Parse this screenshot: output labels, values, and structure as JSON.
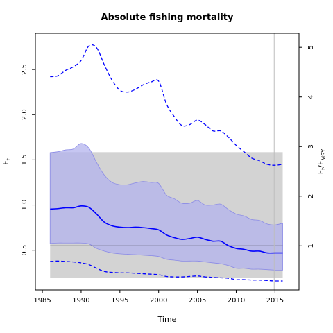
{
  "chart_data": {
    "type": "line",
    "title": "Absolute fishing mortality",
    "xlabel": "Time",
    "ylabel_main": "F",
    "ylabel_sub": "t",
    "y2label_main": "F",
    "y2label_sub1": "t",
    "y2label_sep": "/F",
    "y2label_sub2": "MSY",
    "xlim": [
      1984.1,
      2018.1
    ],
    "ylim": [
      0.06,
      2.9
    ],
    "x_ticks": [
      1985,
      1990,
      1995,
      2000,
      2005,
      2010,
      2015
    ],
    "y_ticks": [
      0.5,
      1.0,
      1.5,
      2.0,
      2.5
    ],
    "y_tick_labels": [
      "0.5",
      "1.0",
      "1.5",
      "2.0",
      "2.5"
    ],
    "y2_ticks": [
      1,
      2,
      3,
      4,
      5
    ],
    "y2_scale": 0.549,
    "fmsy": 0.549,
    "fmsy_ci": [
      0.195,
      1.585
    ],
    "vline_x": 2014.9,
    "years": [
      1986,
      1987,
      1988,
      1989,
      1990,
      1991,
      1992,
      1993,
      1994,
      1995,
      1996,
      1997,
      1998,
      1999,
      2000,
      2001,
      2002,
      2003,
      2004,
      2005,
      2006,
      2007,
      2008,
      2009,
      2010,
      2011,
      2012,
      2013,
      2014,
      2015,
      2016
    ],
    "series": [
      {
        "name": "estimate",
        "values": [
          0.955,
          0.96,
          0.97,
          0.97,
          0.99,
          0.975,
          0.9,
          0.81,
          0.77,
          0.755,
          0.75,
          0.755,
          0.75,
          0.74,
          0.725,
          0.67,
          0.64,
          0.62,
          0.63,
          0.645,
          0.62,
          0.6,
          0.6,
          0.55,
          0.52,
          0.51,
          0.49,
          0.49,
          0.47,
          0.47,
          0.47
        ]
      },
      {
        "name": "ci_upper",
        "values": [
          1.58,
          1.59,
          1.61,
          1.62,
          1.68,
          1.63,
          1.47,
          1.33,
          1.25,
          1.225,
          1.225,
          1.245,
          1.26,
          1.25,
          1.24,
          1.11,
          1.07,
          1.02,
          1.02,
          1.05,
          1.0,
          1.0,
          1.01,
          0.95,
          0.9,
          0.88,
          0.84,
          0.83,
          0.79,
          0.78,
          0.8
        ]
      },
      {
        "name": "ci_lower",
        "values": [
          0.575,
          0.58,
          0.58,
          0.58,
          0.58,
          0.57,
          0.52,
          0.49,
          0.47,
          0.46,
          0.455,
          0.45,
          0.445,
          0.44,
          0.43,
          0.4,
          0.39,
          0.38,
          0.38,
          0.38,
          0.37,
          0.36,
          0.35,
          0.33,
          0.3,
          0.3,
          0.29,
          0.29,
          0.285,
          0.28,
          0.28
        ]
      },
      {
        "name": "dash_upper",
        "values": [
          2.42,
          2.43,
          2.49,
          2.53,
          2.6,
          2.76,
          2.74,
          2.55,
          2.38,
          2.27,
          2.25,
          2.28,
          2.33,
          2.36,
          2.37,
          2.12,
          1.98,
          1.88,
          1.89,
          1.94,
          1.89,
          1.82,
          1.82,
          1.75,
          1.66,
          1.59,
          1.52,
          1.49,
          1.45,
          1.44,
          1.45
        ]
      },
      {
        "name": "dash_lower",
        "values": [
          0.375,
          0.38,
          0.375,
          0.37,
          0.36,
          0.34,
          0.3,
          0.265,
          0.255,
          0.25,
          0.25,
          0.245,
          0.24,
          0.235,
          0.23,
          0.21,
          0.205,
          0.205,
          0.21,
          0.215,
          0.205,
          0.2,
          0.195,
          0.19,
          0.175,
          0.175,
          0.17,
          0.17,
          0.165,
          0.16,
          0.16
        ]
      }
    ],
    "colors": {
      "estimate": "#0000ff",
      "ci_fill": "#b3b3ee",
      "ci_edge": "#8a8ae6",
      "msy_band": "#d3d3d3",
      "msy_line": "#000000",
      "vline": "#bdbdbd",
      "axis": "#000000"
    },
    "grid": false
  }
}
